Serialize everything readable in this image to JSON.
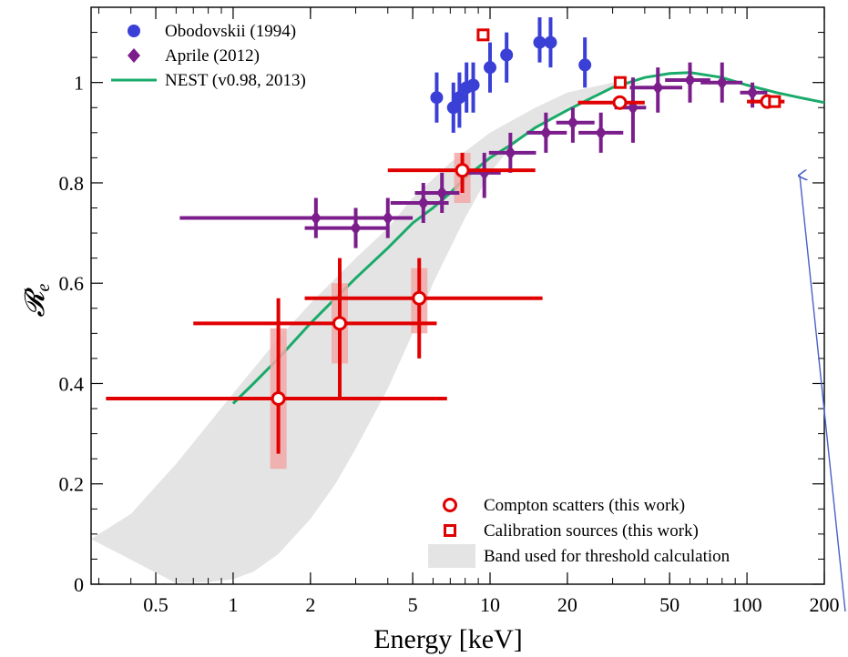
{
  "chart_data": {
    "type": "scatter",
    "xlabel": "Energy [keV]",
    "ylabel": "R_e",
    "xscale": "log",
    "xlim": [
      0.28,
      200
    ],
    "ylim": [
      0,
      1.15
    ],
    "xticks": [
      {
        "v": 0.5,
        "label": "0.5"
      },
      {
        "v": 1,
        "label": "1"
      },
      {
        "v": 2,
        "label": "2"
      },
      {
        "v": 5,
        "label": "5"
      },
      {
        "v": 10,
        "label": "10"
      },
      {
        "v": 20,
        "label": "20"
      },
      {
        "v": 50,
        "label": "50"
      },
      {
        "v": 100,
        "label": "100"
      },
      {
        "v": 200,
        "label": "200"
      }
    ],
    "yticks": [
      {
        "v": 0,
        "label": "0"
      },
      {
        "v": 0.2,
        "label": "0.2"
      },
      {
        "v": 0.4,
        "label": "0.4"
      },
      {
        "v": 0.6,
        "label": "0.6"
      },
      {
        "v": 0.8,
        "label": "0.8"
      },
      {
        "v": 1.0,
        "label": "1"
      }
    ],
    "colors": {
      "obodovskii": "#3a3fd6",
      "aprile": "#7b1e8c",
      "nest": "#1aaa6a",
      "compton": "#e00000",
      "band": "#e4e4e4",
      "annotation_arrow": "#4a5fc8"
    },
    "legend_top": [
      {
        "key": "obodovskii",
        "label": "Obodovskii (1994)",
        "marker": "circle"
      },
      {
        "key": "aprile",
        "label": "Aprile (2012)",
        "marker": "diamond"
      },
      {
        "key": "nest",
        "label": "NEST (v0.98, 2013)",
        "marker": "line"
      }
    ],
    "legend_bottom": [
      {
        "key": "compton",
        "label": "Compton scatters (this work)",
        "marker": "open-circle"
      },
      {
        "key": "calib",
        "label": "Calibration sources (this work)",
        "marker": "open-square"
      },
      {
        "key": "band",
        "label": "Band used for threshold calculation",
        "marker": "band"
      }
    ],
    "band": {
      "upper": [
        [
          0.28,
          0.09
        ],
        [
          0.4,
          0.14
        ],
        [
          0.6,
          0.24
        ],
        [
          1,
          0.38
        ],
        [
          1.5,
          0.49
        ],
        [
          2,
          0.56
        ],
        [
          3,
          0.65
        ],
        [
          4,
          0.71
        ],
        [
          5,
          0.77
        ],
        [
          7,
          0.84
        ],
        [
          10,
          0.9
        ],
        [
          15,
          0.95
        ],
        [
          20,
          0.98
        ],
        [
          30,
          1.0
        ],
        [
          40,
          1.0
        ]
      ],
      "lower": [
        [
          40,
          1.0
        ],
        [
          30,
          0.99
        ],
        [
          25,
          0.97
        ],
        [
          20,
          0.95
        ],
        [
          15,
          0.91
        ],
        [
          12,
          0.87
        ],
        [
          10,
          0.82
        ],
        [
          8,
          0.73
        ],
        [
          7,
          0.67
        ],
        [
          6,
          0.6
        ],
        [
          5,
          0.5
        ],
        [
          4,
          0.39
        ],
        [
          3,
          0.27
        ],
        [
          2.5,
          0.2
        ],
        [
          2,
          0.13
        ],
        [
          1.5,
          0.06
        ],
        [
          1.2,
          0.025
        ],
        [
          1,
          0.01
        ],
        [
          0.8,
          0.004
        ],
        [
          0.6,
          0.002
        ]
      ]
    },
    "series": [
      {
        "name": "Obodovskii (1994)",
        "key": "obodovskii",
        "marker": "circle",
        "points": [
          {
            "x": 6.2,
            "y": 0.97,
            "ylo": 0.92,
            "yhi": 1.02
          },
          {
            "x": 7.2,
            "y": 0.95,
            "ylo": 0.9,
            "yhi": 1.0
          },
          {
            "x": 7.6,
            "y": 0.97,
            "ylo": 0.91,
            "yhi": 1.02
          },
          {
            "x": 8.1,
            "y": 0.99,
            "ylo": 0.94,
            "yhi": 1.04
          },
          {
            "x": 8.6,
            "y": 0.995,
            "ylo": 0.94,
            "yhi": 1.04
          },
          {
            "x": 10.0,
            "y": 1.03,
            "ylo": 0.98,
            "yhi": 1.08
          },
          {
            "x": 11.6,
            "y": 1.055,
            "ylo": 1.0,
            "yhi": 1.1
          },
          {
            "x": 15.6,
            "y": 1.08,
            "ylo": 1.04,
            "yhi": 1.13
          },
          {
            "x": 17.2,
            "y": 1.08,
            "ylo": 1.03,
            "yhi": 1.13
          },
          {
            "x": 23.4,
            "y": 1.035,
            "ylo": 0.99,
            "yhi": 1.09
          }
        ]
      },
      {
        "name": "Aprile (2012)",
        "key": "aprile",
        "marker": "diamond",
        "points": [
          {
            "x": 2.1,
            "y": 0.73,
            "xlo": 0.62,
            "xhi": 3.9,
            "ylo": 0.69,
            "yhi": 0.77
          },
          {
            "x": 3.0,
            "y": 0.71,
            "xlo": 1.9,
            "xhi": 4.0,
            "ylo": 0.67,
            "yhi": 0.75
          },
          {
            "x": 4.0,
            "y": 0.73,
            "xlo": 3.1,
            "xhi": 5.0,
            "ylo": 0.69,
            "yhi": 0.77
          },
          {
            "x": 5.5,
            "y": 0.76,
            "xlo": 4.1,
            "xhi": 6.9,
            "ylo": 0.72,
            "yhi": 0.8
          },
          {
            "x": 6.5,
            "y": 0.78,
            "xlo": 5.1,
            "xhi": 7.6,
            "ylo": 0.74,
            "yhi": 0.82
          },
          {
            "x": 9.5,
            "y": 0.82,
            "xlo": 8.1,
            "xhi": 11.0,
            "ylo": 0.77,
            "yhi": 0.86
          },
          {
            "x": 12.0,
            "y": 0.86,
            "xlo": 9.9,
            "xhi": 15.1,
            "ylo": 0.82,
            "yhi": 0.9
          },
          {
            "x": 16.5,
            "y": 0.9,
            "xlo": 13.9,
            "xhi": 19.9,
            "ylo": 0.86,
            "yhi": 0.94
          },
          {
            "x": 21.0,
            "y": 0.92,
            "xlo": 18.1,
            "xhi": 25.5,
            "ylo": 0.88,
            "yhi": 0.95
          },
          {
            "x": 27.0,
            "y": 0.9,
            "xlo": 22.1,
            "xhi": 33.0,
            "ylo": 0.86,
            "yhi": 0.94
          },
          {
            "x": 36.0,
            "y": 0.95,
            "xlo": 30.5,
            "xhi": 40.5,
            "ylo": 0.88,
            "yhi": 1.01
          },
          {
            "x": 45.0,
            "y": 0.99,
            "xlo": 35.0,
            "xhi": 56.0,
            "ylo": 0.94,
            "yhi": 1.03
          },
          {
            "x": 60.0,
            "y": 1.005,
            "xlo": 48.0,
            "xhi": 72.0,
            "ylo": 0.96,
            "yhi": 1.04
          },
          {
            "x": 80.0,
            "y": 1.0,
            "xlo": 66.0,
            "xhi": 96.0,
            "ylo": 0.96,
            "yhi": 1.04
          },
          {
            "x": 105.0,
            "y": 0.98,
            "xlo": 94.0,
            "xhi": 120.0,
            "ylo": 0.95,
            "yhi": 1.0
          }
        ]
      },
      {
        "name": "Compton scatters (this work)",
        "key": "compton",
        "marker": "open-circle",
        "points": [
          {
            "x": 1.5,
            "y": 0.37,
            "xlo": 0.32,
            "xhi": 6.8,
            "ylo": 0.26,
            "yhi": 0.57,
            "sys": [
              0.23,
              0.51
            ]
          },
          {
            "x": 2.6,
            "y": 0.52,
            "xlo": 0.7,
            "xhi": 6.2,
            "ylo": 0.37,
            "yhi": 0.65,
            "sys": [
              0.44,
              0.6
            ]
          },
          {
            "x": 5.3,
            "y": 0.57,
            "xlo": 1.9,
            "xhi": 16.0,
            "ylo": 0.45,
            "yhi": 0.65,
            "sys": [
              0.5,
              0.63
            ]
          },
          {
            "x": 7.8,
            "y": 0.825,
            "xlo": 4.0,
            "xhi": 15.0,
            "ylo": 0.78,
            "yhi": 0.86,
            "sys": [
              0.76,
              0.86
            ]
          },
          {
            "x": 32.0,
            "y": 0.96,
            "xlo": 22.0,
            "xhi": 40.0,
            "ylo": 0.95,
            "yhi": 0.97
          },
          {
            "x": 120.0,
            "y": 0.962,
            "xlo": 100.0,
            "xhi": 140.0,
            "ylo": 0.955,
            "yhi": 0.969
          }
        ]
      },
      {
        "name": "Calibration sources (this work)",
        "key": "calib",
        "marker": "open-square",
        "points": [
          {
            "x": 9.4,
            "y": 1.095
          },
          {
            "x": 32.1,
            "y": 1.0
          },
          {
            "x": 128.0,
            "y": 0.962
          }
        ]
      },
      {
        "name": "NEST (v0.98, 2013)",
        "key": "nest",
        "marker": "line",
        "points": [
          {
            "x": 1.0,
            "y": 0.36
          },
          {
            "x": 1.2,
            "y": 0.4
          },
          {
            "x": 1.5,
            "y": 0.45
          },
          {
            "x": 2.0,
            "y": 0.52
          },
          {
            "x": 2.5,
            "y": 0.57
          },
          {
            "x": 3.0,
            "y": 0.61
          },
          {
            "x": 4.0,
            "y": 0.67
          },
          {
            "x": 5.0,
            "y": 0.72
          },
          {
            "x": 6.0,
            "y": 0.75
          },
          {
            "x": 7.0,
            "y": 0.78
          },
          {
            "x": 8.0,
            "y": 0.81
          },
          {
            "x": 10.0,
            "y": 0.85
          },
          {
            "x": 12.0,
            "y": 0.875
          },
          {
            "x": 15.0,
            "y": 0.91
          },
          {
            "x": 20.0,
            "y": 0.945
          },
          {
            "x": 25.0,
            "y": 0.97
          },
          {
            "x": 30.0,
            "y": 0.99
          },
          {
            "x": 40.0,
            "y": 1.01
          },
          {
            "x": 50.0,
            "y": 1.018
          },
          {
            "x": 60.0,
            "y": 1.02
          },
          {
            "x": 80.0,
            "y": 1.01
          },
          {
            "x": 100.0,
            "y": 0.995
          },
          {
            "x": 130.0,
            "y": 0.98
          },
          {
            "x": 160.0,
            "y": 0.97
          },
          {
            "x": 200.0,
            "y": 0.96
          }
        ]
      }
    ]
  }
}
